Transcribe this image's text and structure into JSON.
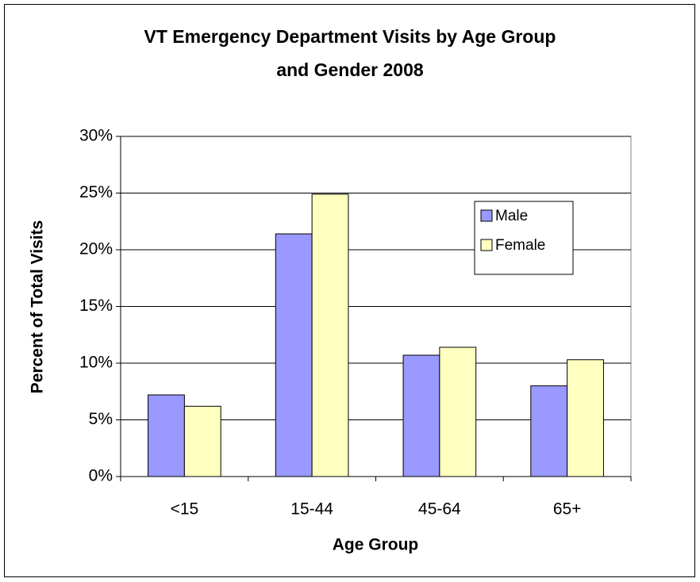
{
  "chart_data": {
    "type": "bar",
    "title": [
      "VT Emergency Department Visits by Age Group",
      "and Gender 2008"
    ],
    "x_label": "Age Group",
    "y_label": "Percent of Total Visits",
    "categories": [
      "<15",
      "15-44",
      "45-64",
      "65+"
    ],
    "series": [
      {
        "name": "Male",
        "color": "#9999ff",
        "values": [
          7.2,
          21.4,
          10.7,
          8.0
        ]
      },
      {
        "name": "Female",
        "color": "#ffffc0",
        "values": [
          6.2,
          24.9,
          11.4,
          10.3
        ]
      }
    ],
    "ylim": [
      0,
      30
    ],
    "yticks": [
      {
        "value": 0,
        "label": "0%"
      },
      {
        "value": 5,
        "label": "5%"
      },
      {
        "value": 10,
        "label": "10%"
      },
      {
        "value": 15,
        "label": "15%"
      },
      {
        "value": 20,
        "label": "20%"
      },
      {
        "value": 25,
        "label": "25%"
      },
      {
        "value": 30,
        "label": "30%"
      }
    ],
    "grid": true,
    "legend": "upper right"
  }
}
